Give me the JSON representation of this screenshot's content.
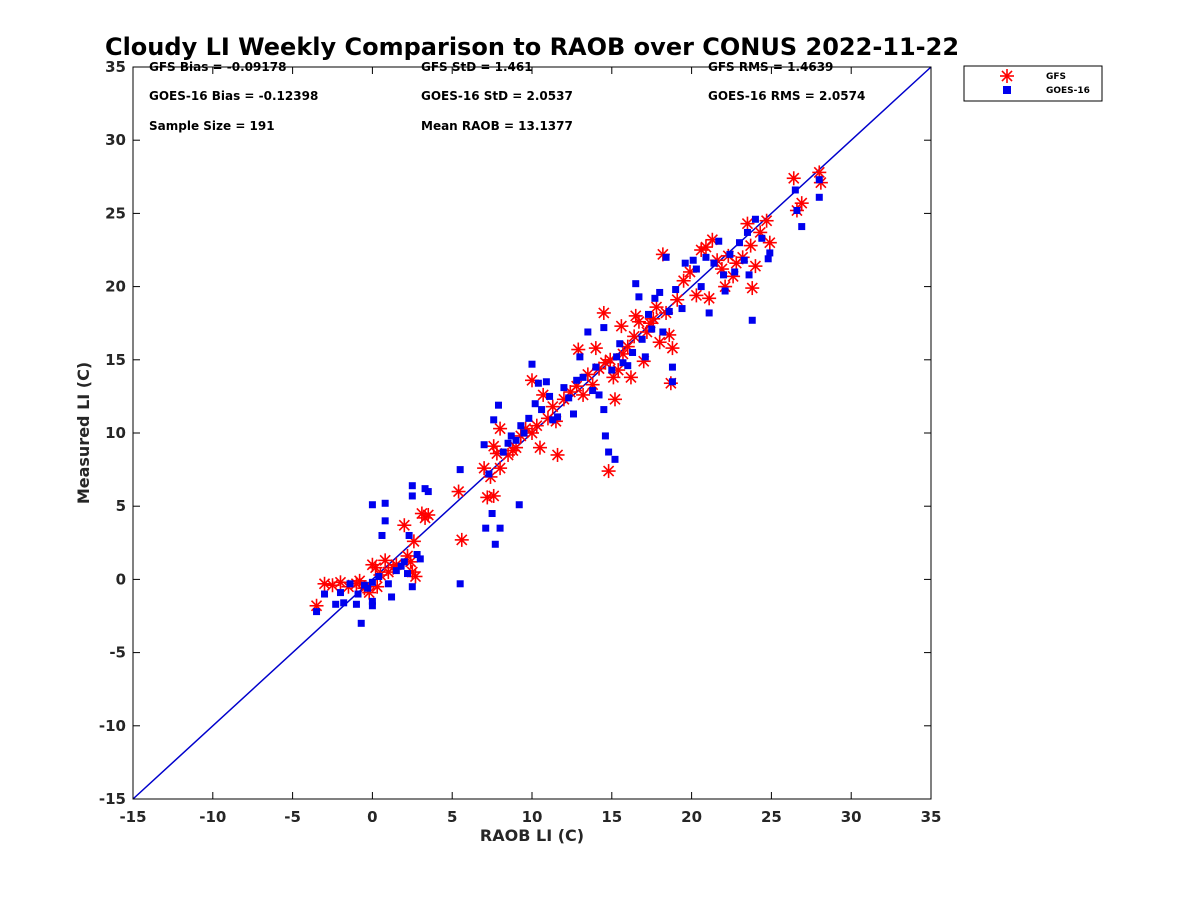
{
  "chart_data": {
    "type": "scatter",
    "title": "Cloudy LI Weekly Comparison to RAOB over CONUS 2022-11-22",
    "xlabel": "RAOB LI (C)",
    "ylabel": "Measured LI (C)",
    "xlim": [
      -15,
      35
    ],
    "ylim": [
      -15,
      35
    ],
    "xticks": [
      "-15",
      "-10",
      "-5",
      "0",
      "5",
      "10",
      "15",
      "20",
      "25",
      "30",
      "35"
    ],
    "yticks": [
      "-15",
      "-10",
      "-5",
      "0",
      "5",
      "10",
      "15",
      "20",
      "25",
      "30",
      "35"
    ],
    "grid": false,
    "legend_position": "outside-top-right",
    "reference_line": {
      "from": [
        -15,
        -15
      ],
      "to": [
        35,
        35
      ],
      "color": "#0000cc"
    },
    "stats": [
      "GFS Bias = -0.09178",
      "GFS StD = 1.461",
      "GFS RMS = 1.4639",
      "GOES-16 Bias = -0.12398",
      "GOES-16 StD = 2.0537",
      "GOES-16 RMS = 2.0574",
      "Sample Size = 191",
      "Mean RAOB = 13.1377"
    ],
    "series": [
      {
        "name": "GFS",
        "marker": "asterisk",
        "color": "#ff0000",
        "points": [
          [
            -3.5,
            -1.8
          ],
          [
            -3.0,
            -0.3
          ],
          [
            -2.5,
            -0.4
          ],
          [
            -2.0,
            -0.2
          ],
          [
            -1.5,
            -0.5
          ],
          [
            -1.0,
            -0.3
          ],
          [
            -0.8,
            -0.1
          ],
          [
            -0.5,
            -0.6
          ],
          [
            -0.2,
            -0.9
          ],
          [
            0.0,
            1.0
          ],
          [
            0.2,
            0.8
          ],
          [
            0.3,
            -0.5
          ],
          [
            0.5,
            0.3
          ],
          [
            0.8,
            1.3
          ],
          [
            1.0,
            0.5
          ],
          [
            1.3,
            0.8
          ],
          [
            1.5,
            1.0
          ],
          [
            2.0,
            3.7
          ],
          [
            2.2,
            1.6
          ],
          [
            2.4,
            1.2
          ],
          [
            2.5,
            0.5
          ],
          [
            2.6,
            2.6
          ],
          [
            2.7,
            0.2
          ],
          [
            3.1,
            4.5
          ],
          [
            3.3,
            4.2
          ],
          [
            3.5,
            4.4
          ],
          [
            5.4,
            6.0
          ],
          [
            5.6,
            2.7
          ],
          [
            7.0,
            7.6
          ],
          [
            7.2,
            5.6
          ],
          [
            7.4,
            7.0
          ],
          [
            7.6,
            5.7
          ],
          [
            7.6,
            9.1
          ],
          [
            7.8,
            8.6
          ],
          [
            8.0,
            10.3
          ],
          [
            8.0,
            7.6
          ],
          [
            8.5,
            8.5
          ],
          [
            8.8,
            8.8
          ],
          [
            9.0,
            9.0
          ],
          [
            9.3,
            9.8
          ],
          [
            9.6,
            10.3
          ],
          [
            10.0,
            10.0
          ],
          [
            10.0,
            13.6
          ],
          [
            10.3,
            10.5
          ],
          [
            10.5,
            9.0
          ],
          [
            10.7,
            12.6
          ],
          [
            11.0,
            11.0
          ],
          [
            11.3,
            11.8
          ],
          [
            11.5,
            10.8
          ],
          [
            11.6,
            8.5
          ],
          [
            12.0,
            12.3
          ],
          [
            12.4,
            12.8
          ],
          [
            12.8,
            13.2
          ],
          [
            12.9,
            15.7
          ],
          [
            13.2,
            12.6
          ],
          [
            13.5,
            14.0
          ],
          [
            13.8,
            13.3
          ],
          [
            14.0,
            15.8
          ],
          [
            14.2,
            14.4
          ],
          [
            14.5,
            18.2
          ],
          [
            14.6,
            14.8
          ],
          [
            14.8,
            7.4
          ],
          [
            14.9,
            15.0
          ],
          [
            15.1,
            13.8
          ],
          [
            15.2,
            12.3
          ],
          [
            15.4,
            14.3
          ],
          [
            15.6,
            17.3
          ],
          [
            15.7,
            15.4
          ],
          [
            16.0,
            15.9
          ],
          [
            16.2,
            13.8
          ],
          [
            16.4,
            16.6
          ],
          [
            16.5,
            18.0
          ],
          [
            16.7,
            17.6
          ],
          [
            17.0,
            14.9
          ],
          [
            17.2,
            16.9
          ],
          [
            17.4,
            17.5
          ],
          [
            17.6,
            17.8
          ],
          [
            17.8,
            18.6
          ],
          [
            18.0,
            16.2
          ],
          [
            18.2,
            22.2
          ],
          [
            18.4,
            18.2
          ],
          [
            18.6,
            16.7
          ],
          [
            18.7,
            13.4
          ],
          [
            18.8,
            15.8
          ],
          [
            19.1,
            19.1
          ],
          [
            19.5,
            20.4
          ],
          [
            19.9,
            21.0
          ],
          [
            20.3,
            19.4
          ],
          [
            20.6,
            22.5
          ],
          [
            20.9,
            22.7
          ],
          [
            21.1,
            19.2
          ],
          [
            21.3,
            23.2
          ],
          [
            21.6,
            21.8
          ],
          [
            21.9,
            21.2
          ],
          [
            22.1,
            20.0
          ],
          [
            22.3,
            22.1
          ],
          [
            22.6,
            20.7
          ],
          [
            22.8,
            21.6
          ],
          [
            23.2,
            22.0
          ],
          [
            23.5,
            24.3
          ],
          [
            23.7,
            22.8
          ],
          [
            23.8,
            19.9
          ],
          [
            24.0,
            21.4
          ],
          [
            24.3,
            23.7
          ],
          [
            24.7,
            24.5
          ],
          [
            24.9,
            23.0
          ],
          [
            26.4,
            27.4
          ],
          [
            26.6,
            25.2
          ],
          [
            26.9,
            25.7
          ],
          [
            28.0,
            27.8
          ],
          [
            28.1,
            27.1
          ]
        ]
      },
      {
        "name": "GOES-16",
        "marker": "square",
        "color": "#0000ee",
        "points": [
          [
            -3.5,
            -2.2
          ],
          [
            -3.0,
            -1.0
          ],
          [
            -2.3,
            -1.7
          ],
          [
            -2.0,
            -0.9
          ],
          [
            -1.8,
            -1.6
          ],
          [
            -1.4,
            -0.3
          ],
          [
            -1.0,
            -1.7
          ],
          [
            -0.9,
            -1.0
          ],
          [
            -0.7,
            -3.0
          ],
          [
            -0.5,
            -0.4
          ],
          [
            -0.3,
            -0.6
          ],
          [
            0.0,
            -1.5
          ],
          [
            0.0,
            -1.8
          ],
          [
            0.0,
            5.1
          ],
          [
            0.0,
            -0.2
          ],
          [
            0.4,
            0.2
          ],
          [
            0.6,
            3.0
          ],
          [
            0.8,
            4.0
          ],
          [
            0.8,
            5.2
          ],
          [
            1.0,
            -0.3
          ],
          [
            1.2,
            -1.2
          ],
          [
            1.5,
            0.6
          ],
          [
            1.8,
            0.9
          ],
          [
            2.0,
            1.2
          ],
          [
            2.2,
            0.4
          ],
          [
            2.3,
            3.0
          ],
          [
            2.5,
            5.7
          ],
          [
            2.5,
            6.4
          ],
          [
            2.5,
            -0.5
          ],
          [
            2.8,
            1.7
          ],
          [
            3.0,
            1.4
          ],
          [
            3.3,
            6.2
          ],
          [
            3.5,
            6.0
          ],
          [
            5.5,
            7.5
          ],
          [
            5.5,
            -0.3
          ],
          [
            7.0,
            9.2
          ],
          [
            7.1,
            3.5
          ],
          [
            7.3,
            7.2
          ],
          [
            7.5,
            4.5
          ],
          [
            7.6,
            10.9
          ],
          [
            7.7,
            2.4
          ],
          [
            7.9,
            11.9
          ],
          [
            8.0,
            3.5
          ],
          [
            8.2,
            8.7
          ],
          [
            8.5,
            9.3
          ],
          [
            8.7,
            9.8
          ],
          [
            9.0,
            9.5
          ],
          [
            9.2,
            5.1
          ],
          [
            9.3,
            10.5
          ],
          [
            9.5,
            10.0
          ],
          [
            9.8,
            11.0
          ],
          [
            10.0,
            14.7
          ],
          [
            10.2,
            12.0
          ],
          [
            10.4,
            13.4
          ],
          [
            10.6,
            11.6
          ],
          [
            10.9,
            13.5
          ],
          [
            11.1,
            12.5
          ],
          [
            11.3,
            10.9
          ],
          [
            11.6,
            11.1
          ],
          [
            12.0,
            13.1
          ],
          [
            12.3,
            12.4
          ],
          [
            12.6,
            11.3
          ],
          [
            12.8,
            13.6
          ],
          [
            13.0,
            15.2
          ],
          [
            13.2,
            13.8
          ],
          [
            13.5,
            16.9
          ],
          [
            13.8,
            12.9
          ],
          [
            14.0,
            14.5
          ],
          [
            14.2,
            12.6
          ],
          [
            14.5,
            11.6
          ],
          [
            14.5,
            17.2
          ],
          [
            14.6,
            9.8
          ],
          [
            14.8,
            8.7
          ],
          [
            15.0,
            14.3
          ],
          [
            15.2,
            8.2
          ],
          [
            15.3,
            15.2
          ],
          [
            15.5,
            16.1
          ],
          [
            15.7,
            14.8
          ],
          [
            16.0,
            14.6
          ],
          [
            16.3,
            15.5
          ],
          [
            16.5,
            20.2
          ],
          [
            16.7,
            19.3
          ],
          [
            16.9,
            16.4
          ],
          [
            17.1,
            15.2
          ],
          [
            17.3,
            18.1
          ],
          [
            17.5,
            17.1
          ],
          [
            17.7,
            19.2
          ],
          [
            18.0,
            19.6
          ],
          [
            18.2,
            16.9
          ],
          [
            18.4,
            22.0
          ],
          [
            18.6,
            18.3
          ],
          [
            18.8,
            14.5
          ],
          [
            18.8,
            13.5
          ],
          [
            19.0,
            19.8
          ],
          [
            19.4,
            18.5
          ],
          [
            19.6,
            21.6
          ],
          [
            20.1,
            21.8
          ],
          [
            20.3,
            21.2
          ],
          [
            20.6,
            20.0
          ],
          [
            20.9,
            22.0
          ],
          [
            21.1,
            18.2
          ],
          [
            21.4,
            21.6
          ],
          [
            21.7,
            23.1
          ],
          [
            22.0,
            20.8
          ],
          [
            22.1,
            19.7
          ],
          [
            22.4,
            22.2
          ],
          [
            22.7,
            21.0
          ],
          [
            23.0,
            23.0
          ],
          [
            23.3,
            21.8
          ],
          [
            23.5,
            23.7
          ],
          [
            23.6,
            20.8
          ],
          [
            23.8,
            17.7
          ],
          [
            24.0,
            24.6
          ],
          [
            24.4,
            23.3
          ],
          [
            24.8,
            21.9
          ],
          [
            24.9,
            22.3
          ],
          [
            26.5,
            26.6
          ],
          [
            26.6,
            25.2
          ],
          [
            26.9,
            24.1
          ],
          [
            28.0,
            27.3
          ],
          [
            28.0,
            26.1
          ]
        ]
      }
    ]
  }
}
